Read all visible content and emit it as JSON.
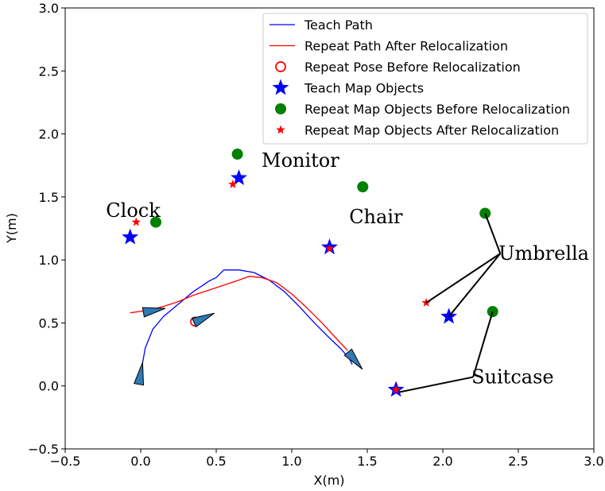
{
  "chart_data": {
    "type": "scatter",
    "xlabel": "X(m)",
    "ylabel": "Y(m)",
    "xlim": [
      -0.5,
      3.0
    ],
    "ylim": [
      -0.5,
      3.0
    ],
    "xticks": [
      "−0.5",
      "0.0",
      "0.5",
      "1.0",
      "1.5",
      "2.0",
      "2.5",
      "3.0"
    ],
    "yticks": [
      "−0.5",
      "0.0",
      "0.5",
      "1.0",
      "1.5",
      "2.0",
      "2.5",
      "3.0"
    ],
    "grid": false,
    "legend_position": "top-right",
    "colors": {
      "teach_path": "#0000ff",
      "repeat_path": "#ff0000",
      "arrow_fill": "#2f7bb5",
      "teach_objects": "#0000ff",
      "repeat_before": "#008000",
      "repeat_after": "#ff0000"
    },
    "series": [
      {
        "name": "Teach Path",
        "kind": "line",
        "x": [
          0.0,
          0.0,
          0.03,
          0.08,
          0.15,
          0.25,
          0.35,
          0.45,
          0.5,
          0.55,
          0.65,
          0.75,
          0.85,
          0.95,
          1.05,
          1.15,
          1.25,
          1.32,
          1.38,
          1.4
        ],
        "y": [
          0.03,
          0.1,
          0.3,
          0.45,
          0.55,
          0.65,
          0.75,
          0.83,
          0.86,
          0.92,
          0.92,
          0.9,
          0.84,
          0.75,
          0.63,
          0.5,
          0.38,
          0.3,
          0.22,
          0.17
        ]
      },
      {
        "name": "Repeat Path After Relocalization",
        "kind": "line",
        "x": [
          -0.07,
          0.05,
          0.15,
          0.25,
          0.35,
          0.45,
          0.55,
          0.65,
          0.72,
          0.8,
          0.9,
          1.0,
          1.1,
          1.2,
          1.3,
          1.37
        ],
        "y": [
          0.58,
          0.6,
          0.63,
          0.67,
          0.72,
          0.76,
          0.8,
          0.84,
          0.87,
          0.86,
          0.82,
          0.73,
          0.62,
          0.5,
          0.37,
          0.28
        ]
      },
      {
        "name": "Repeat Pose Before Relocalization",
        "kind": "marker",
        "x": [
          0.36
        ],
        "y": [
          0.51
        ]
      },
      {
        "name": "Teach Map Objects",
        "kind": "marker",
        "x": [
          -0.07,
          0.65,
          1.25,
          2.04,
          1.69
        ],
        "y": [
          1.18,
          1.65,
          1.1,
          0.55,
          -0.03
        ]
      },
      {
        "name": "Repeat Map Objects Before Relocalization",
        "kind": "marker",
        "x": [
          0.1,
          0.64,
          1.47,
          2.28,
          2.33
        ],
        "y": [
          1.3,
          1.84,
          1.58,
          1.37,
          0.59
        ]
      },
      {
        "name": "Repeat Map Objects After Relocalization",
        "kind": "marker",
        "x": [
          -0.03,
          0.61,
          1.25,
          1.89,
          1.69
        ],
        "y": [
          1.3,
          1.6,
          1.09,
          0.66,
          -0.03
        ]
      }
    ],
    "pose_arrows": [
      {
        "x": 0.0,
        "y": 0.1,
        "angle_deg": 80
      },
      {
        "x": 0.09,
        "y": 0.6,
        "angle_deg": 10
      },
      {
        "x": 0.42,
        "y": 0.54,
        "angle_deg": 25
      },
      {
        "x": 1.42,
        "y": 0.2,
        "angle_deg": -50
      }
    ],
    "annotations": [
      {
        "text": "Clock",
        "x": -0.23,
        "y": 1.34,
        "points_to": []
      },
      {
        "text": "Monitor",
        "x": 0.8,
        "y": 1.74,
        "points_to": []
      },
      {
        "text": "Chair",
        "x": 1.38,
        "y": 1.29,
        "points_to": []
      },
      {
        "text": "Umbrella",
        "x": 2.37,
        "y": 1.0,
        "points_to": [
          [
            1.89,
            0.66
          ],
          [
            2.04,
            0.55
          ],
          [
            2.28,
            1.37
          ]
        ]
      },
      {
        "text": "Suitcase",
        "x": 2.19,
        "y": 0.02,
        "points_to": [
          [
            1.71,
            -0.05
          ],
          [
            2.33,
            0.59
          ]
        ]
      }
    ]
  }
}
